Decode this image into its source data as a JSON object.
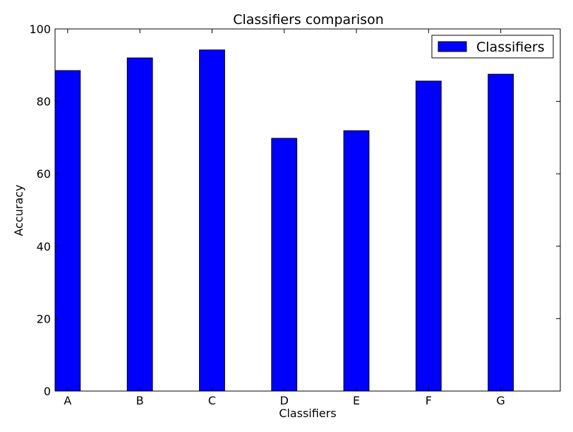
{
  "chart_data": {
    "type": "bar",
    "title": "Classifiers comparison",
    "xlabel": "Classifiers",
    "ylabel": "Accuracy",
    "categories": [
      "A",
      "B",
      "C",
      "D",
      "E",
      "F",
      "G"
    ],
    "series": [
      {
        "name": "Classifiers",
        "values": [
          88.5,
          92.0,
          94.2,
          69.8,
          71.9,
          85.6,
          87.5
        ],
        "color": "#0000ff"
      }
    ],
    "ylim": [
      0,
      100
    ],
    "yticks": [
      0,
      20,
      40,
      60,
      80,
      100
    ],
    "grid": false,
    "legend": {
      "position": "top-right",
      "labels": [
        "Classifiers"
      ]
    }
  }
}
